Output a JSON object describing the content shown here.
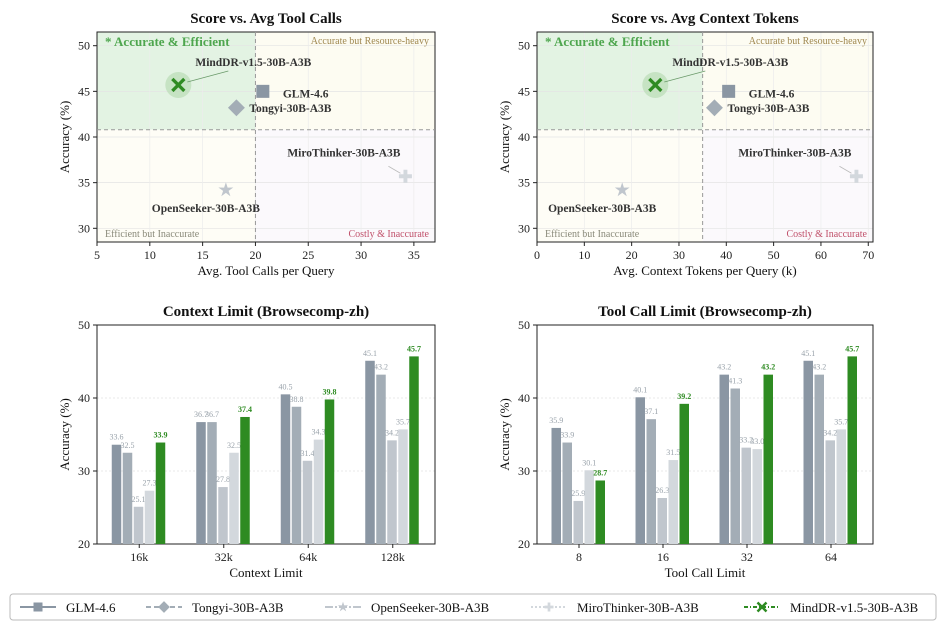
{
  "models": [
    {
      "name": "GLM-4.6",
      "color": "#8a96a3",
      "marker": "square"
    },
    {
      "name": "Tongyi-30B-A3B",
      "color": "#a3adb6",
      "marker": "diamond"
    },
    {
      "name": "OpenSeeker-30B-A3B",
      "color": "#c0c6cd",
      "marker": "star"
    },
    {
      "name": "MiroThinker-30B-A3B",
      "color": "#d3d8dd",
      "marker": "plus"
    },
    {
      "name": "MindDR-v1.5-30B-A3B",
      "color": "#2e8b22",
      "marker": "x"
    }
  ],
  "chart_data": [
    {
      "type": "scatter",
      "title": "Score  vs.  Avg Tool Calls",
      "xlabel": "Avg. Tool Calls per Query",
      "ylabel": "Accuracy (%)",
      "xlim": [
        5,
        37
      ],
      "ylim": [
        28.5,
        51.5
      ],
      "xticks": [
        5,
        10,
        15,
        20,
        25,
        30,
        35
      ],
      "yticks": [
        30,
        35,
        40,
        45,
        50
      ],
      "grid": true,
      "divider": {
        "x": 20,
        "y": 40.8
      },
      "quadrants": {
        "top_left": "* Accurate & Efficient",
        "top_right": "Accurate but Resource-heavy",
        "bottom_left": "Efficient but Inaccurate",
        "bottom_right": "Costly & Inaccurate"
      },
      "points": [
        {
          "model": "GLM-4.6",
          "x": 20.7,
          "y": 45.0
        },
        {
          "model": "Tongyi-30B-A3B",
          "x": 18.2,
          "y": 43.2
        },
        {
          "model": "OpenSeeker-30B-A3B",
          "x": 17.2,
          "y": 34.2
        },
        {
          "model": "MiroThinker-30B-A3B",
          "x": 34.2,
          "y": 35.7
        },
        {
          "model": "MindDR-v1.5-30B-A3B",
          "x": 12.7,
          "y": 45.7
        }
      ]
    },
    {
      "type": "scatter",
      "title": "Score  vs.  Avg Context Tokens",
      "xlabel": "Avg. Context Tokens per Query (k)",
      "ylabel": "Accuracy (%)",
      "xlim": [
        0,
        71
      ],
      "ylim": [
        28.5,
        51.5
      ],
      "xticks": [
        0,
        10,
        20,
        30,
        40,
        50,
        60,
        70
      ],
      "yticks": [
        30,
        35,
        40,
        45,
        50
      ],
      "grid": true,
      "divider": {
        "x": 35,
        "y": 40.8
      },
      "quadrants": {
        "top_left": "* Accurate & Efficient",
        "top_right": "Accurate but Resource-heavy",
        "bottom_left": "Efficient but Inaccurate",
        "bottom_right": "Costly & Inaccurate"
      },
      "points": [
        {
          "model": "GLM-4.6",
          "x": 40.5,
          "y": 45.0
        },
        {
          "model": "Tongyi-30B-A3B",
          "x": 37.5,
          "y": 43.2
        },
        {
          "model": "OpenSeeker-30B-A3B",
          "x": 18.0,
          "y": 34.2
        },
        {
          "model": "MiroThinker-30B-A3B",
          "x": 67.5,
          "y": 35.7
        },
        {
          "model": "MindDR-v1.5-30B-A3B",
          "x": 25.0,
          "y": 45.7
        }
      ]
    },
    {
      "type": "bar",
      "title": "Context Limit  (Browsecomp-zh)",
      "xlabel": "Context Limit",
      "ylabel": "Accuracy (%)",
      "ylim": [
        20,
        50
      ],
      "yticks": [
        20,
        30,
        40,
        50
      ],
      "grid": true,
      "categories": [
        "16k",
        "32k",
        "64k",
        "128k"
      ],
      "series": [
        {
          "name": "GLM-4.6",
          "values": [
            33.6,
            36.7,
            40.5,
            45.1
          ]
        },
        {
          "name": "Tongyi-30B-A3B",
          "values": [
            32.5,
            36.7,
            38.8,
            43.2
          ]
        },
        {
          "name": "OpenSeeker-30B-A3B",
          "values": [
            25.1,
            27.8,
            31.4,
            34.2
          ]
        },
        {
          "name": "MiroThinker-30B-A3B",
          "values": [
            27.3,
            32.5,
            34.3,
            35.7
          ]
        },
        {
          "name": "MindDR-v1.5-30B-A3B",
          "values": [
            33.9,
            37.4,
            39.8,
            45.7
          ]
        }
      ]
    },
    {
      "type": "bar",
      "title": "Tool Call Limit  (Browsecomp-zh)",
      "xlabel": "Tool Call Limit",
      "ylabel": "Accuracy (%)",
      "ylim": [
        20,
        50
      ],
      "yticks": [
        20,
        30,
        40,
        50
      ],
      "grid": true,
      "categories": [
        "8",
        "16",
        "32",
        "64"
      ],
      "series": [
        {
          "name": "GLM-4.6",
          "values": [
            35.9,
            40.1,
            43.2,
            45.1
          ]
        },
        {
          "name": "Tongyi-30B-A3B",
          "values": [
            33.9,
            37.1,
            41.3,
            43.2
          ]
        },
        {
          "name": "OpenSeeker-30B-A3B",
          "values": [
            25.9,
            26.3,
            33.2,
            34.2
          ]
        },
        {
          "name": "MiroThinker-30B-A3B",
          "values": [
            30.1,
            31.5,
            33.0,
            35.7
          ]
        },
        {
          "name": "MindDR-v1.5-30B-A3B",
          "values": [
            28.7,
            39.2,
            43.2,
            45.7
          ]
        }
      ]
    }
  ],
  "legend": {
    "placement": "bottom"
  }
}
